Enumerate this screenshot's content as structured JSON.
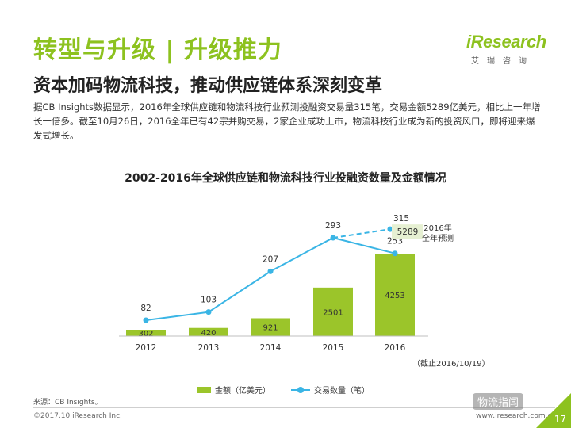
{
  "header": {
    "title": "转型与升级 | 升级推力",
    "subtitle": "资本加码物流科技，推动供应链体系深刻变革"
  },
  "logo": {
    "word": "iResearch",
    "cn": "艾瑞咨询"
  },
  "description": "据CB Insights数据显示，2016年全球供应链和物流科技行业预测投融资交易量315笔，交易金额5289亿美元，相比上一年增长一倍多。截至10月26日，2016全年已有42宗并购交易，2家企业成功上市，物流科技行业成为新的投资风口，即将迎来爆发式增长。",
  "chart_data": {
    "type": "bar+line",
    "title": "2002-2016年全球供应链和物流科技行业投融资数量及金额情况",
    "categories": [
      "2012",
      "2013",
      "2014",
      "2015",
      "2016"
    ],
    "series": [
      {
        "name": "金额（亿美元）",
        "type": "bar",
        "values": [
          302,
          420,
          921,
          2501,
          4253
        ]
      },
      {
        "name": "交易数量（笔）",
        "type": "line",
        "values": [
          82,
          103,
          207,
          293,
          253
        ]
      }
    ],
    "forecast": {
      "label": "2016年全年预测",
      "deals": 315,
      "amount": 5289
    },
    "note": "（截止2016/10/19）",
    "colors": {
      "bar": "#9bc52a",
      "line": "#3ab5e5",
      "forecast_box": "#e6f0d2"
    }
  },
  "footer": {
    "source": "来源：CB Insights。",
    "copyright": "©2017.10 iResearch Inc.",
    "website": "www.iresearch.com.cn",
    "watermark": "物流指闻",
    "page": "17"
  }
}
